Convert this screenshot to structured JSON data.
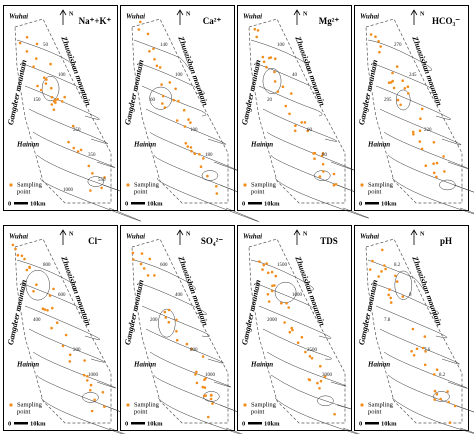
{
  "labels": {
    "city_top": "Wuhai",
    "north": "N",
    "mountain_east": "Zhuozishan mountain",
    "mountain_west": "Gangdeer mountain",
    "city_mid": "Hainan",
    "legend_line1": "Sampling",
    "legend_line2": "point",
    "scale_start": "0",
    "scale_end": "10km"
  },
  "panels": [
    {
      "title": "Na⁺+K⁺",
      "contour_labels": [
        "50",
        "100",
        "150",
        "250",
        "350",
        "550",
        "1000"
      ]
    },
    {
      "title": "Ca²⁺",
      "contour_labels": [
        "140",
        "100",
        "60",
        "100",
        "180"
      ]
    },
    {
      "title": "Mg²⁺",
      "contour_labels": [
        "100",
        "40",
        "20",
        "60",
        "80"
      ]
    },
    {
      "title": "HCO₃⁻",
      "contour_labels": [
        "270",
        "245",
        "295",
        "220"
      ]
    },
    {
      "title": "Cl⁻",
      "contour_labels": [
        "800",
        "600",
        "400",
        "200",
        "1000"
      ]
    },
    {
      "title": "SO₄²⁻",
      "contour_labels": [
        "600",
        "400",
        "200",
        "800",
        "1000"
      ]
    },
    {
      "title": "TDS",
      "contour_labels": [
        "1500",
        "1000",
        "2000",
        "2500",
        "3000"
      ]
    },
    {
      "title": "pH",
      "contour_labels": [
        "8.2",
        "8",
        "7.8",
        "7.6",
        "8.2"
      ]
    }
  ]
}
